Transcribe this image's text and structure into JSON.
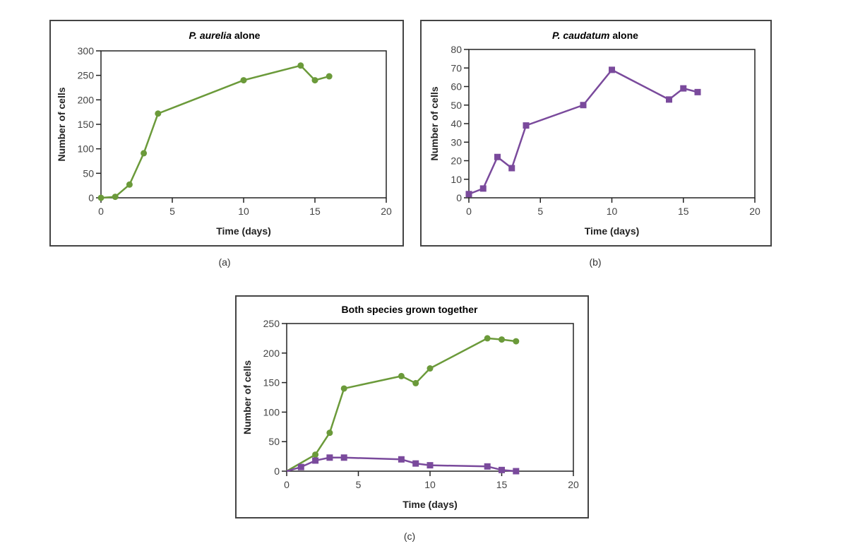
{
  "captions": [
    "(a)",
    "(b)",
    "(c)"
  ],
  "colors": {
    "aurelia": "#6b9a3a",
    "caudatum": "#7a4a9c",
    "axis": "#222222"
  },
  "chart_data": [
    {
      "type": "line",
      "title_italic": "P. aurelia",
      "title_rest": " alone",
      "xlabel": "Time (days)",
      "ylabel": "Number of cells",
      "xlim": [
        0,
        20
      ],
      "ylim": [
        0,
        300
      ],
      "xticks": [
        0,
        5,
        10,
        15,
        20
      ],
      "yticks": [
        0,
        50,
        100,
        150,
        200,
        250,
        300
      ],
      "grid": false,
      "series": [
        {
          "marker": "circle",
          "color": "#6b9a3a",
          "x": [
            0,
            1,
            2,
            3,
            4,
            10,
            14,
            15,
            16
          ],
          "y": [
            0,
            2,
            27,
            91,
            172,
            240,
            270,
            240,
            248
          ]
        }
      ]
    },
    {
      "type": "line",
      "title_italic": "P. caudatum",
      "title_rest": " alone",
      "xlabel": "Time (days)",
      "ylabel": "Number of cells",
      "xlim": [
        0,
        20
      ],
      "ylim": [
        0,
        80
      ],
      "xticks": [
        0,
        5,
        10,
        15,
        20
      ],
      "yticks": [
        0,
        10,
        20,
        30,
        40,
        50,
        60,
        70,
        80
      ],
      "grid": false,
      "series": [
        {
          "marker": "square",
          "color": "#7a4a9c",
          "x": [
            0,
            1,
            2,
            3,
            4,
            8,
            10,
            14,
            15,
            16
          ],
          "y": [
            2,
            5,
            22,
            16,
            39,
            50,
            69,
            53,
            59,
            57
          ]
        }
      ]
    },
    {
      "type": "line",
      "title_italic": "",
      "title_rest": "Both species grown together",
      "xlabel": "Time (days)",
      "ylabel": "Number of cells",
      "xlim": [
        0,
        20
      ],
      "ylim": [
        0,
        250
      ],
      "xticks": [
        0,
        5,
        10,
        15,
        20
      ],
      "yticks": [
        0,
        50,
        100,
        150,
        200,
        250
      ],
      "grid": false,
      "series": [
        {
          "marker": "circle",
          "color": "#6b9a3a",
          "x": [
            0,
            2,
            3,
            4,
            8,
            9,
            10,
            14,
            15,
            16
          ],
          "y": [
            0,
            28,
            65,
            140,
            161,
            149,
            174,
            225,
            223,
            220
          ]
        },
        {
          "marker": "square",
          "color": "#7a4a9c",
          "x": [
            0,
            1,
            2,
            3,
            4,
            8,
            9,
            10,
            14,
            15,
            16
          ],
          "y": [
            0,
            7,
            18,
            23,
            23,
            20,
            13,
            10,
            8,
            2,
            0
          ]
        }
      ]
    }
  ]
}
